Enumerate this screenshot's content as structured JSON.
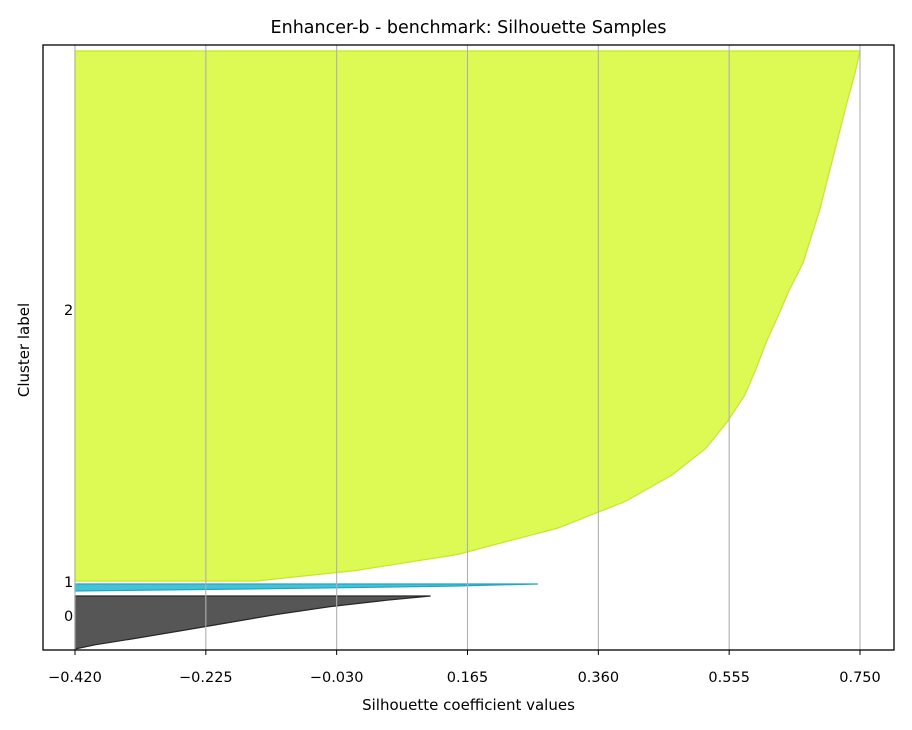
{
  "chart_data": {
    "type": "area",
    "title": "Enhancer-b - benchmark: Silhouette Samples",
    "xlabel": "Silhouette coefficient values",
    "ylabel": "Cluster label",
    "xlim": [
      -0.42,
      0.75
    ],
    "xticks": [
      "-0.420",
      "-0.225",
      "-0.030",
      "0.165",
      "0.360",
      "0.555",
      "0.750"
    ],
    "x_tick_values": [
      -0.42,
      -0.225,
      -0.03,
      0.165,
      0.36,
      0.555,
      0.75
    ],
    "grid": "vertical",
    "legend": "none",
    "series": [
      {
        "name": "0",
        "color": "#4d4d4d",
        "edge": "#262626",
        "n_samples": 52,
        "profile": [
          [
            0,
            0.11
          ],
          [
            0.08,
            0.045
          ],
          [
            0.2,
            -0.04
          ],
          [
            0.35,
            -0.12
          ],
          [
            0.5,
            -0.19
          ],
          [
            0.65,
            -0.26
          ],
          [
            0.8,
            -0.33
          ],
          [
            0.92,
            -0.39
          ],
          [
            1,
            -0.42
          ]
        ]
      },
      {
        "name": "1",
        "color": "#3cbfd6",
        "edge": "#1fa8c2",
        "n_samples": 7,
        "profile": [
          [
            0,
            0.27
          ],
          [
            0.3,
            0.14
          ],
          [
            0.6,
            -0.07
          ],
          [
            1,
            -0.42
          ]
        ]
      },
      {
        "name": "2",
        "color": "#dbf94a",
        "edge": "#c5ea1a",
        "n_samples": 530,
        "profile": [
          [
            0,
            0.75
          ],
          [
            0.04,
            0.743
          ],
          [
            0.1,
            0.73
          ],
          [
            0.2,
            0.71
          ],
          [
            0.3,
            0.69
          ],
          [
            0.4,
            0.665
          ],
          [
            0.45,
            0.645
          ],
          [
            0.5,
            0.628
          ],
          [
            0.55,
            0.61
          ],
          [
            0.6,
            0.595
          ],
          [
            0.65,
            0.578
          ],
          [
            0.7,
            0.552
          ],
          [
            0.75,
            0.52
          ],
          [
            0.8,
            0.47
          ],
          [
            0.85,
            0.4
          ],
          [
            0.9,
            0.3
          ],
          [
            0.95,
            0.15
          ],
          [
            0.98,
            0.0
          ],
          [
            1,
            -0.15
          ]
        ]
      }
    ]
  }
}
